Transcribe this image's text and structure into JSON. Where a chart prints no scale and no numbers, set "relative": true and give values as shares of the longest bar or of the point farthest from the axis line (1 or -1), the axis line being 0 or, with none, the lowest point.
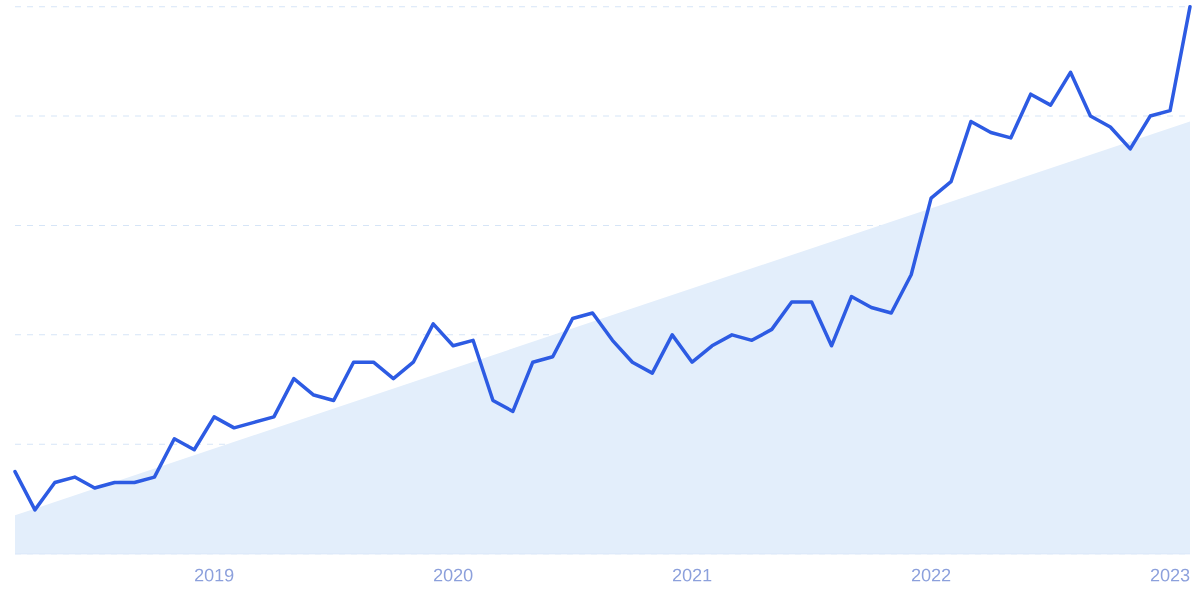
{
  "chart_data": {
    "type": "line",
    "relative": true,
    "grid": "y",
    "marker": "none",
    "line_style": "solid",
    "x": [
      "2018-03",
      "2018-04",
      "2018-05",
      "2018-06",
      "2018-07",
      "2018-08",
      "2018-09",
      "2018-10",
      "2018-11",
      "2018-12",
      "2019-01",
      "2019-02",
      "2019-03",
      "2019-04",
      "2019-05",
      "2019-06",
      "2019-07",
      "2019-08",
      "2019-09",
      "2019-10",
      "2019-11",
      "2019-12",
      "2020-01",
      "2020-02",
      "2020-03",
      "2020-04",
      "2020-05",
      "2020-06",
      "2020-07",
      "2020-08",
      "2020-09",
      "2020-10",
      "2020-11",
      "2020-12",
      "2021-01",
      "2021-02",
      "2021-03",
      "2021-04",
      "2021-05",
      "2021-06",
      "2021-07",
      "2021-08",
      "2021-09",
      "2021-10",
      "2021-11",
      "2021-12",
      "2022-01",
      "2022-02",
      "2022-03",
      "2022-04",
      "2022-05",
      "2022-06",
      "2022-07",
      "2022-08",
      "2022-09",
      "2022-10",
      "2022-11",
      "2022-12",
      "2023-01",
      "2023-02"
    ],
    "xlim": [
      "2018-03",
      "2023-02"
    ],
    "xticks": [
      {
        "value": "2019-01",
        "label": "2019"
      },
      {
        "value": "2020-01",
        "label": "2020"
      },
      {
        "value": "2021-01",
        "label": "2021"
      },
      {
        "value": "2022-01",
        "label": "2022"
      },
      {
        "value": "2023-01",
        "label": "2023"
      }
    ],
    "series": [
      {
        "type": "area",
        "color": "#e3eefb",
        "x": [
          "2018-03",
          "2023-02"
        ],
        "values": [
          0.07,
          0.79
        ]
      },
      {
        "color": "#2d5be3",
        "values": [
          0.15,
          0.08,
          0.13,
          0.14,
          0.12,
          0.13,
          0.13,
          0.14,
          0.21,
          0.19,
          0.25,
          0.23,
          0.24,
          0.25,
          0.32,
          0.29,
          0.28,
          0.35,
          0.35,
          0.32,
          0.35,
          0.42,
          0.38,
          0.39,
          0.28,
          0.26,
          0.35,
          0.36,
          0.43,
          0.44,
          0.39,
          0.35,
          0.33,
          0.4,
          0.35,
          0.38,
          0.4,
          0.39,
          0.41,
          0.46,
          0.46,
          0.38,
          0.47,
          0.45,
          0.44,
          0.51,
          0.65,
          0.68,
          0.79,
          0.77,
          0.76,
          0.84,
          0.82,
          0.88,
          0.8,
          0.78,
          0.74,
          0.8,
          0.81,
          1.0
        ]
      }
    ]
  }
}
